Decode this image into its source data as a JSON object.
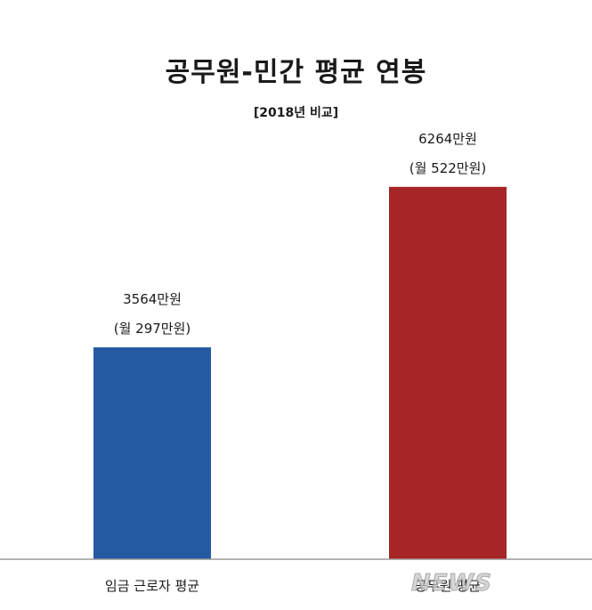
{
  "chart_data": {
    "type": "bar",
    "title": "공무원-민간 평균 연봉",
    "subtitle": "[2018년 비교]",
    "categories": [
      "임금 근로자 평균",
      "공무원 평균"
    ],
    "values": [
      3564,
      6264
    ],
    "value_labels": [
      "3564만원",
      "6264만원"
    ],
    "monthly_labels": [
      "(월 297만원)",
      "(월 522만원)"
    ],
    "colors": [
      "#245aa3",
      "#a72527"
    ],
    "ylim": [
      0,
      7160
    ],
    "grid": false,
    "legend": "none"
  },
  "watermark": "NEWS"
}
